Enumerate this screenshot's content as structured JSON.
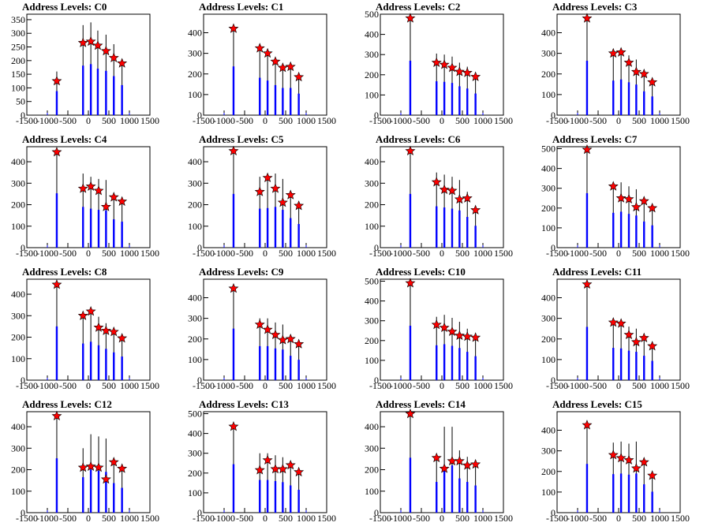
{
  "chart_data": [
    {
      "type": "bar",
      "title": "Address Levels: C0",
      "xlim": [
        -1500,
        1500
      ],
      "ylim": [
        0,
        370
      ],
      "yticks": [
        0,
        50,
        100,
        150,
        200,
        250,
        300,
        350
      ],
      "xticks": [
        -1500,
        -1000,
        -500,
        0,
        500,
        1000,
        1500
      ],
      "peaks": [
        {
          "x": -770,
          "y": 125,
          "bar": 160
        },
        {
          "x": -130,
          "y": 265,
          "bar": 330
        },
        {
          "x": 60,
          "y": 270,
          "bar": 340
        },
        {
          "x": 230,
          "y": 255,
          "bar": 310
        },
        {
          "x": 430,
          "y": 235,
          "bar": 295
        },
        {
          "x": 620,
          "y": 210,
          "bar": 260
        },
        {
          "x": 820,
          "y": 190,
          "bar": 200
        }
      ]
    },
    {
      "type": "bar",
      "title": "Address Levels: C1",
      "xlim": [
        -1500,
        1500
      ],
      "ylim": [
        0,
        490
      ],
      "yticks": [
        0,
        100,
        200,
        300,
        400
      ],
      "xticks": [
        -1500,
        -1000,
        -500,
        0,
        500,
        1000,
        1500
      ],
      "peaks": [
        {
          "x": -770,
          "y": 420,
          "bar": 430
        },
        {
          "x": -130,
          "y": 325,
          "bar": 330
        },
        {
          "x": 60,
          "y": 300,
          "bar": 305
        },
        {
          "x": 250,
          "y": 260,
          "bar": 265
        },
        {
          "x": 430,
          "y": 230,
          "bar": 240
        },
        {
          "x": 620,
          "y": 235,
          "bar": 240
        },
        {
          "x": 820,
          "y": 185,
          "bar": 190
        }
      ]
    },
    {
      "type": "bar",
      "title": "Address Levels: C2",
      "xlim": [
        -1500,
        1500
      ],
      "ylim": [
        0,
        500
      ],
      "yticks": [
        0,
        100,
        200,
        300,
        400,
        500
      ],
      "xticks": [
        -1500,
        -1000,
        -500,
        0,
        500,
        1000,
        1500
      ],
      "peaks": [
        {
          "x": -770,
          "y": 480,
          "bar": 490
        },
        {
          "x": -130,
          "y": 260,
          "bar": 305
        },
        {
          "x": 60,
          "y": 250,
          "bar": 300
        },
        {
          "x": 250,
          "y": 235,
          "bar": 290
        },
        {
          "x": 430,
          "y": 215,
          "bar": 260
        },
        {
          "x": 620,
          "y": 210,
          "bar": 240
        },
        {
          "x": 820,
          "y": 190,
          "bar": 195
        }
      ]
    },
    {
      "type": "bar",
      "title": "Address Levels: C3",
      "xlim": [
        -1500,
        1500
      ],
      "ylim": [
        0,
        490
      ],
      "yticks": [
        0,
        100,
        200,
        300,
        400
      ],
      "xticks": [
        -1500,
        -1000,
        -500,
        0,
        500,
        1000,
        1500
      ],
      "peaks": [
        {
          "x": -770,
          "y": 470,
          "bar": 480
        },
        {
          "x": -130,
          "y": 300,
          "bar": 305
        },
        {
          "x": 60,
          "y": 305,
          "bar": 315
        },
        {
          "x": 250,
          "y": 255,
          "bar": 290
        },
        {
          "x": 430,
          "y": 210,
          "bar": 270
        },
        {
          "x": 620,
          "y": 200,
          "bar": 210
        },
        {
          "x": 820,
          "y": 160,
          "bar": 165
        }
      ]
    },
    {
      "type": "bar",
      "title": "Address Levels: C4",
      "xlim": [
        -1500,
        1500
      ],
      "ylim": [
        0,
        470
      ],
      "yticks": [
        0,
        100,
        200,
        300,
        400
      ],
      "xticks": [
        -1500,
        -1000,
        -500,
        0,
        500,
        1000,
        1500
      ],
      "peaks": [
        {
          "x": -770,
          "y": 445,
          "bar": 460
        },
        {
          "x": -130,
          "y": 275,
          "bar": 345
        },
        {
          "x": 60,
          "y": 285,
          "bar": 330
        },
        {
          "x": 250,
          "y": 265,
          "bar": 320
        },
        {
          "x": 430,
          "y": 190,
          "bar": 315
        },
        {
          "x": 620,
          "y": 235,
          "bar": 240
        },
        {
          "x": 820,
          "y": 215,
          "bar": 220
        }
      ]
    },
    {
      "type": "bar",
      "title": "Address Levels: C5",
      "xlim": [
        -1500,
        1500
      ],
      "ylim": [
        0,
        470
      ],
      "yticks": [
        0,
        100,
        200,
        300,
        400
      ],
      "xticks": [
        -1500,
        -1000,
        -500,
        0,
        500,
        1000,
        1500
      ],
      "peaks": [
        {
          "x": -770,
          "y": 450,
          "bar": 455
        },
        {
          "x": -130,
          "y": 260,
          "bar": 330
        },
        {
          "x": 60,
          "y": 325,
          "bar": 335
        },
        {
          "x": 250,
          "y": 275,
          "bar": 345
        },
        {
          "x": 430,
          "y": 210,
          "bar": 320
        },
        {
          "x": 620,
          "y": 245,
          "bar": 250
        },
        {
          "x": 820,
          "y": 195,
          "bar": 200
        }
      ]
    },
    {
      "type": "bar",
      "title": "Address Levels: C6",
      "xlim": [
        -1500,
        1500
      ],
      "ylim": [
        0,
        470
      ],
      "yticks": [
        0,
        100,
        200,
        300,
        400
      ],
      "xticks": [
        -1500,
        -1000,
        -500,
        0,
        500,
        1000,
        1500
      ],
      "peaks": [
        {
          "x": -770,
          "y": 450,
          "bar": 455
        },
        {
          "x": -130,
          "y": 305,
          "bar": 350
        },
        {
          "x": 60,
          "y": 270,
          "bar": 340
        },
        {
          "x": 250,
          "y": 265,
          "bar": 330
        },
        {
          "x": 430,
          "y": 225,
          "bar": 315
        },
        {
          "x": 620,
          "y": 230,
          "bar": 260
        },
        {
          "x": 820,
          "y": 175,
          "bar": 185
        }
      ]
    },
    {
      "type": "bar",
      "title": "Address Levels: C7",
      "xlim": [
        -1500,
        1500
      ],
      "ylim": [
        0,
        510
      ],
      "yticks": [
        0,
        100,
        200,
        300,
        400,
        500
      ],
      "xticks": [
        -1500,
        -1000,
        -500,
        0,
        500,
        1000,
        1500
      ],
      "peaks": [
        {
          "x": -770,
          "y": 495,
          "bar": 500
        },
        {
          "x": -130,
          "y": 310,
          "bar": 320
        },
        {
          "x": 60,
          "y": 250,
          "bar": 330
        },
        {
          "x": 250,
          "y": 245,
          "bar": 310
        },
        {
          "x": 430,
          "y": 205,
          "bar": 295
        },
        {
          "x": 620,
          "y": 235,
          "bar": 240
        },
        {
          "x": 820,
          "y": 200,
          "bar": 205
        }
      ]
    },
    {
      "type": "bar",
      "title": "Address Levels: C8",
      "xlim": [
        -1500,
        1500
      ],
      "ylim": [
        0,
        470
      ],
      "yticks": [
        0,
        100,
        200,
        300,
        400
      ],
      "xticks": [
        -1500,
        -1000,
        -500,
        0,
        500,
        1000,
        1500
      ],
      "peaks": [
        {
          "x": -770,
          "y": 445,
          "bar": 455
        },
        {
          "x": -130,
          "y": 300,
          "bar": 310
        },
        {
          "x": 60,
          "y": 320,
          "bar": 325
        },
        {
          "x": 250,
          "y": 245,
          "bar": 295
        },
        {
          "x": 430,
          "y": 230,
          "bar": 265
        },
        {
          "x": 620,
          "y": 225,
          "bar": 235
        },
        {
          "x": 820,
          "y": 195,
          "bar": 200
        }
      ]
    },
    {
      "type": "bar",
      "title": "Address Levels: C9",
      "xlim": [
        -1500,
        1500
      ],
      "ylim": [
        0,
        490
      ],
      "yticks": [
        0,
        100,
        200,
        300,
        400
      ],
      "xticks": [
        -1500,
        -1000,
        -500,
        0,
        500,
        1000,
        1500
      ],
      "peaks": [
        {
          "x": -770,
          "y": 445,
          "bar": 455
        },
        {
          "x": -130,
          "y": 270,
          "bar": 300
        },
        {
          "x": 60,
          "y": 245,
          "bar": 300
        },
        {
          "x": 250,
          "y": 220,
          "bar": 280
        },
        {
          "x": 430,
          "y": 195,
          "bar": 270
        },
        {
          "x": 620,
          "y": 200,
          "bar": 215
        },
        {
          "x": 820,
          "y": 175,
          "bar": 180
        }
      ]
    },
    {
      "type": "bar",
      "title": "Address Levels: C10",
      "xlim": [
        -1500,
        1500
      ],
      "ylim": [
        0,
        510
      ],
      "yticks": [
        0,
        100,
        200,
        300,
        400,
        500
      ],
      "xticks": [
        -1500,
        -1000,
        -500,
        0,
        500,
        1000,
        1500
      ],
      "peaks": [
        {
          "x": -770,
          "y": 490,
          "bar": 500
        },
        {
          "x": -130,
          "y": 280,
          "bar": 320
        },
        {
          "x": 60,
          "y": 265,
          "bar": 330
        },
        {
          "x": 250,
          "y": 245,
          "bar": 315
        },
        {
          "x": 430,
          "y": 225,
          "bar": 295
        },
        {
          "x": 620,
          "y": 220,
          "bar": 260
        },
        {
          "x": 820,
          "y": 215,
          "bar": 220
        }
      ]
    },
    {
      "type": "bar",
      "title": "Address Levels: C11",
      "xlim": [
        -1500,
        1500
      ],
      "ylim": [
        0,
        490
      ],
      "yticks": [
        0,
        100,
        200,
        300,
        400
      ],
      "xticks": [
        -1500,
        -1000,
        -500,
        0,
        500,
        1000,
        1500
      ],
      "peaks": [
        {
          "x": -770,
          "y": 465,
          "bar": 470
        },
        {
          "x": -130,
          "y": 280,
          "bar": 285
        },
        {
          "x": 60,
          "y": 275,
          "bar": 280
        },
        {
          "x": 250,
          "y": 220,
          "bar": 260
        },
        {
          "x": 430,
          "y": 185,
          "bar": 250
        },
        {
          "x": 620,
          "y": 205,
          "bar": 215
        },
        {
          "x": 820,
          "y": 165,
          "bar": 170
        }
      ]
    },
    {
      "type": "bar",
      "title": "Address Levels: C12",
      "xlim": [
        -1500,
        1500
      ],
      "ylim": [
        0,
        470
      ],
      "yticks": [
        0,
        100,
        200,
        300,
        400
      ],
      "xticks": [
        -1500,
        -1000,
        -500,
        0,
        500,
        1000,
        1500
      ],
      "peaks": [
        {
          "x": -770,
          "y": 450,
          "bar": 460
        },
        {
          "x": -130,
          "y": 210,
          "bar": 300
        },
        {
          "x": 60,
          "y": 215,
          "bar": 365
        },
        {
          "x": 250,
          "y": 210,
          "bar": 355
        },
        {
          "x": 430,
          "y": 155,
          "bar": 345
        },
        {
          "x": 620,
          "y": 235,
          "bar": 250
        },
        {
          "x": 820,
          "y": 205,
          "bar": 210
        }
      ]
    },
    {
      "type": "bar",
      "title": "Address Levels: C13",
      "xlim": [
        -1500,
        1500
      ],
      "ylim": [
        0,
        510
      ],
      "yticks": [
        0,
        100,
        200,
        300,
        400,
        500
      ],
      "xticks": [
        -1500,
        -1000,
        -500,
        0,
        500,
        1000,
        1500
      ],
      "peaks": [
        {
          "x": -770,
          "y": 435,
          "bar": 445
        },
        {
          "x": -130,
          "y": 215,
          "bar": 300
        },
        {
          "x": 60,
          "y": 265,
          "bar": 300
        },
        {
          "x": 250,
          "y": 220,
          "bar": 290
        },
        {
          "x": 430,
          "y": 220,
          "bar": 280
        },
        {
          "x": 620,
          "y": 240,
          "bar": 250
        },
        {
          "x": 820,
          "y": 205,
          "bar": 210
        }
      ]
    },
    {
      "type": "bar",
      "title": "Address Levels: C14",
      "xlim": [
        -1500,
        1500
      ],
      "ylim": [
        0,
        470
      ],
      "yticks": [
        0,
        100,
        200,
        300,
        400
      ],
      "xticks": [
        -1500,
        -1000,
        -500,
        0,
        500,
        1000,
        1500
      ],
      "peaks": [
        {
          "x": -770,
          "y": 460,
          "bar": 465
        },
        {
          "x": -130,
          "y": 255,
          "bar": 260
        },
        {
          "x": 60,
          "y": 205,
          "bar": 400
        },
        {
          "x": 250,
          "y": 240,
          "bar": 400
        },
        {
          "x": 430,
          "y": 240,
          "bar": 290
        },
        {
          "x": 620,
          "y": 220,
          "bar": 260
        },
        {
          "x": 820,
          "y": 225,
          "bar": 230
        }
      ]
    },
    {
      "type": "bar",
      "title": "Address Levels: C15",
      "xlim": [
        -1500,
        1500
      ],
      "ylim": [
        0,
        490
      ],
      "yticks": [
        0,
        100,
        200,
        300,
        400
      ],
      "xticks": [
        -1500,
        -1000,
        -500,
        0,
        500,
        1000,
        1500
      ],
      "peaks": [
        {
          "x": -770,
          "y": 425,
          "bar": 430
        },
        {
          "x": -130,
          "y": 280,
          "bar": 340
        },
        {
          "x": 60,
          "y": 265,
          "bar": 345
        },
        {
          "x": 250,
          "y": 255,
          "bar": 335
        },
        {
          "x": 430,
          "y": 215,
          "bar": 345
        },
        {
          "x": 620,
          "y": 245,
          "bar": 250
        },
        {
          "x": 820,
          "y": 180,
          "bar": 185
        }
      ]
    }
  ]
}
